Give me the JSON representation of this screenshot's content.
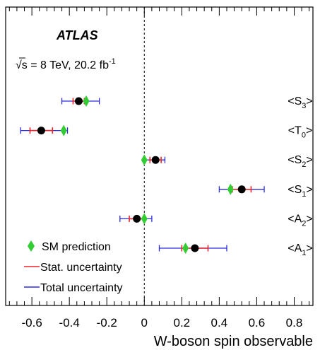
{
  "chart_data": {
    "type": "scatter",
    "experiment": "ATLAS",
    "energy_label": "√s = 8 TeV, 20.2 fb",
    "energy_sup": "-1",
    "xlabel": "W-boson spin observable",
    "xlim": [
      -0.74,
      0.9
    ],
    "xticks": [
      {
        "v": -0.6,
        "label": "-0.6"
      },
      {
        "v": -0.4,
        "label": "-0.4"
      },
      {
        "v": -0.2,
        "label": "-0.2"
      },
      {
        "v": 0,
        "label": "0"
      },
      {
        "v": 0.2,
        "label": "0.2"
      },
      {
        "v": 0.4,
        "label": "0.4"
      },
      {
        "v": 0.6,
        "label": "0.6"
      },
      {
        "v": 0.8,
        "label": "0.8"
      }
    ],
    "observables": [
      {
        "base": "S",
        "sub": "3",
        "measured": -0.35,
        "sm": -0.31,
        "stat_lo": -0.38,
        "stat_hi": -0.32,
        "tot_lo": -0.44,
        "tot_hi": -0.24
      },
      {
        "base": "T",
        "sub": "0",
        "measured": -0.55,
        "sm": -0.43,
        "stat_lo": -0.61,
        "stat_hi": -0.49,
        "tot_lo": -0.66,
        "tot_hi": -0.41
      },
      {
        "base": "S",
        "sub": "2",
        "measured": 0.06,
        "sm": 0.0,
        "stat_lo": 0.03,
        "stat_hi": 0.09,
        "tot_lo": 0.0,
        "tot_hi": 0.11
      },
      {
        "base": "S",
        "sub": "1",
        "measured": 0.52,
        "sm": 0.46,
        "stat_lo": 0.47,
        "stat_hi": 0.57,
        "tot_lo": 0.4,
        "tot_hi": 0.64
      },
      {
        "base": "A",
        "sub": "2",
        "measured": -0.04,
        "sm": 0.0,
        "stat_lo": -0.08,
        "stat_hi": 0.0,
        "tot_lo": -0.13,
        "tot_hi": 0.04
      },
      {
        "base": "A",
        "sub": "1",
        "measured": 0.27,
        "sm": 0.22,
        "stat_lo": 0.2,
        "stat_hi": 0.34,
        "tot_lo": 0.08,
        "tot_hi": 0.44
      }
    ],
    "legend": [
      {
        "kind": "sm",
        "label": "SM prediction"
      },
      {
        "kind": "stat",
        "label": "Stat. uncertainty"
      },
      {
        "kind": "total",
        "label": "Total uncertainty"
      }
    ],
    "colors": {
      "measured": "#000000",
      "sm": "#33cc33",
      "stat": "#e8262b",
      "total": "#2b2bdd"
    }
  }
}
